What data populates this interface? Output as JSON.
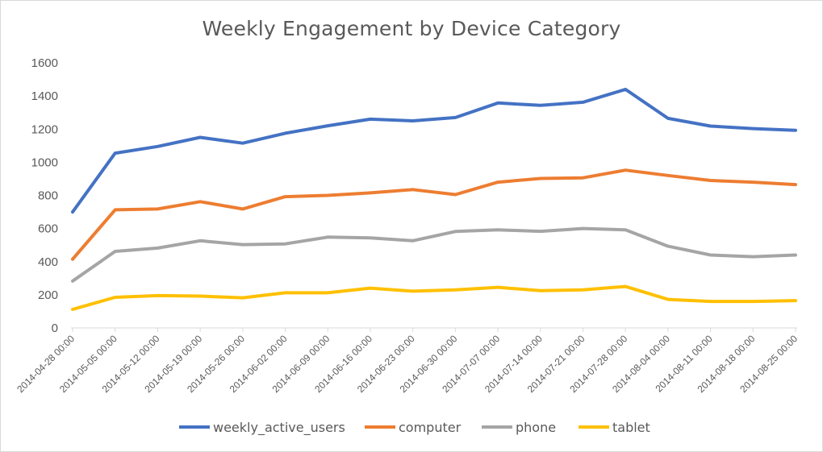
{
  "chart_data": {
    "type": "line",
    "title": "Weekly Engagement by Device Category",
    "xlabel": "",
    "ylabel": "",
    "ylim": [
      0,
      1600
    ],
    "yticks": [
      0,
      200,
      400,
      600,
      800,
      1000,
      1200,
      1400,
      1600
    ],
    "grid": false,
    "legend_position": "bottom",
    "categories": [
      "2014-04-28 00:00",
      "2014-05-05 00:00",
      "2014-05-12 00:00",
      "2014-05-19 00:00",
      "2014-05-26 00:00",
      "2014-06-02 00:00",
      "2014-06-09 00:00",
      "2014-06-16 00:00",
      "2014-06-23 00:00",
      "2014-06-30 00:00",
      "2014-07-07 00:00",
      "2014-07-14 00:00",
      "2014-07-21 00:00",
      "2014-07-28 00:00",
      "2014-08-04 00:00",
      "2014-08-11 00:00",
      "2014-08-18 00:00",
      "2014-08-25 00:00"
    ],
    "series": [
      {
        "name": "weekly_active_users",
        "color": "#4472c4",
        "values": [
          700,
          1055,
          1095,
          1150,
          1115,
          1175,
          1220,
          1260,
          1250,
          1270,
          1358,
          1343,
          1362,
          1440,
          1265,
          1218,
          1203,
          1193
        ]
      },
      {
        "name": "computer",
        "color": "#ed7d31",
        "values": [
          415,
          713,
          718,
          762,
          718,
          792,
          800,
          815,
          835,
          805,
          880,
          902,
          906,
          952,
          920,
          890,
          880,
          865
        ]
      },
      {
        "name": "phone",
        "color": "#a5a5a5",
        "values": [
          283,
          462,
          482,
          526,
          503,
          507,
          548,
          543,
          526,
          582,
          592,
          583,
          600,
          592,
          493,
          440,
          430,
          440
        ]
      },
      {
        "name": "tablet",
        "color": "#ffc000",
        "values": [
          112,
          185,
          195,
          192,
          182,
          212,
          212,
          240,
          222,
          230,
          245,
          225,
          230,
          250,
          172,
          160,
          160,
          165
        ]
      }
    ]
  }
}
